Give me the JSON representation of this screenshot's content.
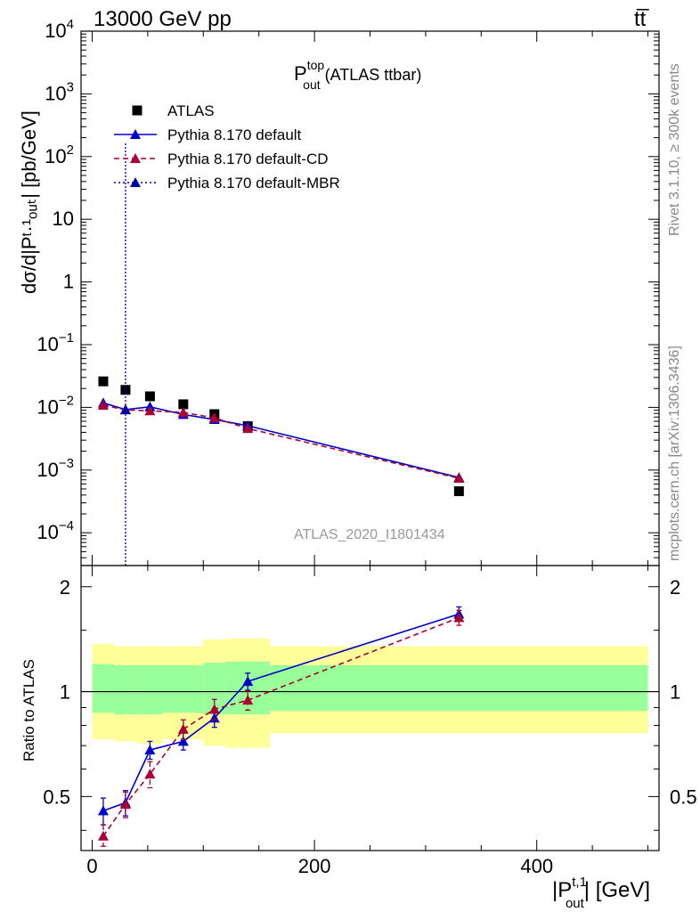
{
  "header": {
    "energy_label": "13000 GeV pp",
    "process_label": "tt̅"
  },
  "side_labels": {
    "rivet": "Rivet 3.1.10, ≥ 300k events",
    "source": "mcplots.cern.ch [arXiv:1306.3436]"
  },
  "chart_data": [
    {
      "type": "line",
      "title_main": "P",
      "title_sup": "top",
      "title_sub": "out",
      "title_rest": " (ATLAS ttbar)",
      "ylabel": "dσ/d|Pᵗ·¹ₒᵤₜ| [pb/GeV]",
      "yscale": "log",
      "ylim": [
        3e-05,
        10000
      ],
      "xlim": [
        -10,
        510
      ],
      "xticks": [
        0,
        200,
        400
      ],
      "yticks": [
        {
          "value": 10000,
          "label": "10",
          "exp": "4"
        },
        {
          "value": 1000,
          "label": "10",
          "exp": "3"
        },
        {
          "value": 100,
          "label": "10",
          "exp": "2"
        },
        {
          "value": 10,
          "label": "10",
          "exp": ""
        },
        {
          "value": 1,
          "label": "1",
          "exp": ""
        },
        {
          "value": 0.1,
          "label": "10",
          "exp": "−1"
        },
        {
          "value": 0.01,
          "label": "10",
          "exp": "−2"
        },
        {
          "value": 0.001,
          "label": "10",
          "exp": "−3"
        },
        {
          "value": 0.0001,
          "label": "10",
          "exp": "−4"
        }
      ],
      "watermark": "ATLAS_2020_I1801434",
      "legend_placement": "top-left",
      "series": [
        {
          "name": "ATLAS",
          "style": "square",
          "color": "#000000",
          "x": [
            10,
            30,
            52,
            82,
            110,
            140,
            330
          ],
          "y": [
            0.026,
            0.019,
            0.015,
            0.0112,
            0.0078,
            0.005,
            0.00046
          ]
        },
        {
          "name": "Pythia 8.170 default",
          "style": "solid",
          "color": "#0000cc",
          "x": [
            10,
            30,
            52,
            82,
            110,
            140,
            330
          ],
          "y": [
            0.0118,
            0.0092,
            0.0102,
            0.0077,
            0.0064,
            0.0051,
            0.00076
          ]
        },
        {
          "name": "Pythia 8.170 default-CD",
          "style": "dashed",
          "color": "#aa0033",
          "x": [
            10,
            30,
            52,
            82,
            110,
            140,
            330
          ],
          "y": [
            0.0108,
            0.0091,
            0.0088,
            0.0083,
            0.0068,
            0.0046,
            0.00074
          ]
        },
        {
          "name": "Pythia 8.170 default-MBR",
          "style": "dotted",
          "color": "#0000aa",
          "x": [
            30
          ],
          "y": [
            0.0092
          ],
          "note_vertical_line": true
        }
      ]
    },
    {
      "type": "line",
      "ylabel": "Ratio to ATLAS",
      "xlabel": "|P",
      "xlabel_sup": "t,1",
      "xlabel_sub": "out",
      "xlabel_rest": "| [GeV]",
      "ylim": [
        0.35,
        2.3
      ],
      "yscale": "log",
      "xlim": [
        -10,
        510
      ],
      "xticks": [
        0,
        200,
        400
      ],
      "yticks": [
        0.5,
        1,
        2
      ],
      "bands": {
        "edges": [
          0,
          20,
          40,
          63,
          100,
          120,
          160,
          500
        ],
        "green_low": [
          0.87,
          0.86,
          0.86,
          0.87,
          0.86,
          0.86,
          0.88
        ],
        "green_high": [
          1.2,
          1.19,
          1.19,
          1.19,
          1.21,
          1.22,
          1.19
        ],
        "yellow_low": [
          0.73,
          0.72,
          0.71,
          0.73,
          0.7,
          0.69,
          0.76
        ],
        "yellow_high": [
          1.37,
          1.35,
          1.35,
          1.35,
          1.41,
          1.42,
          1.35
        ],
        "band_colors": {
          "inner": "#99ff99",
          "outer": "#ffff99"
        }
      },
      "series": [
        {
          "name": "Pythia 8.170 default",
          "color": "#0000cc",
          "style": "solid",
          "x": [
            10,
            30,
            52,
            82,
            110,
            140,
            330
          ],
          "y": [
            0.455,
            0.48,
            0.68,
            0.72,
            0.84,
            1.07,
            1.67
          ],
          "err": [
            0.04,
            0.04,
            0.04,
            0.04,
            0.05,
            0.06,
            0.08
          ]
        },
        {
          "name": "Pythia 8.170 default-CD",
          "color": "#aa0033",
          "style": "dashed",
          "x": [
            10,
            30,
            52,
            82,
            110,
            140,
            330
          ],
          "y": [
            0.385,
            0.475,
            0.58,
            0.78,
            0.89,
            0.945,
            1.63
          ],
          "err": [
            0.03,
            0.04,
            0.05,
            0.05,
            0.06,
            0.06,
            0.08
          ]
        }
      ]
    }
  ]
}
